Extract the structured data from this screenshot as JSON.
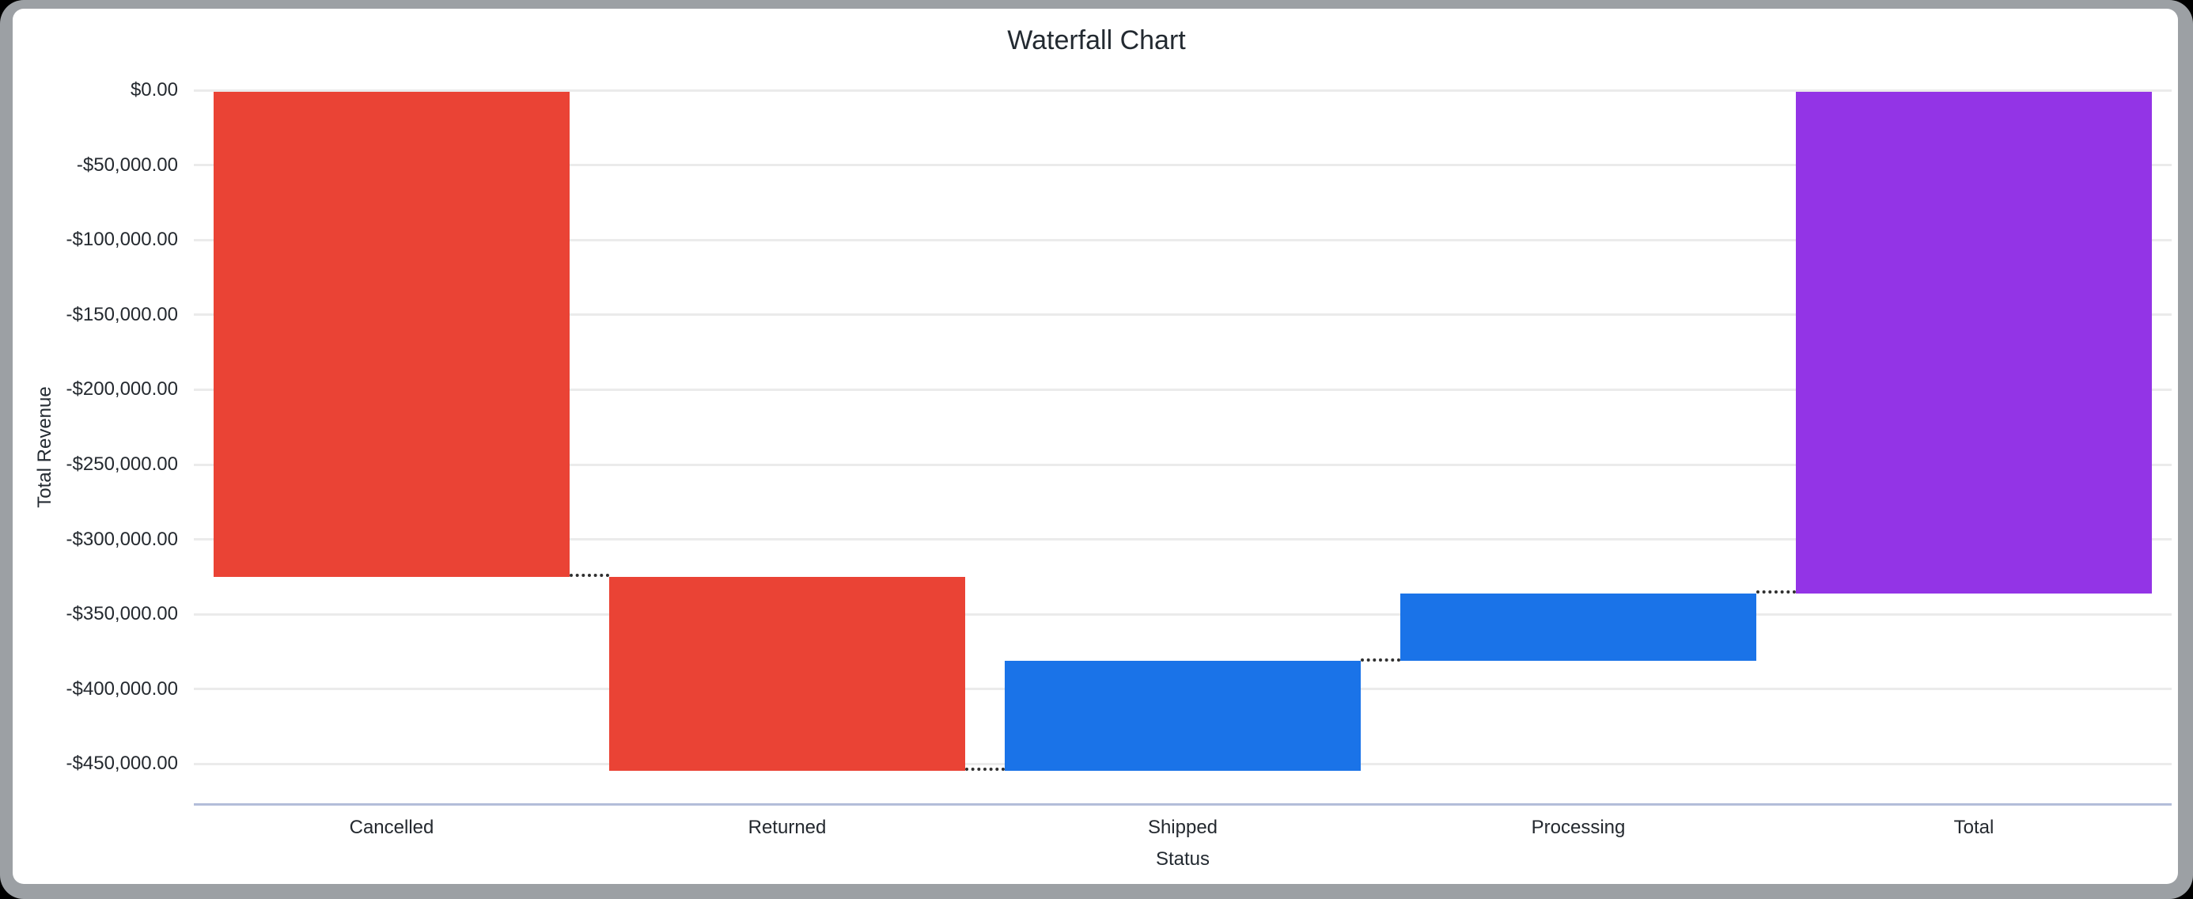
{
  "window": {
    "background": "#000000",
    "frame_color": "#9ca0a4",
    "card_color": "#ffffff"
  },
  "ui_colors": {
    "grid_line": "#ebebeb",
    "axis_line": "#b3bdd9",
    "text": "#24292f",
    "connector": "#303030"
  },
  "chart_data": {
    "type": "bar",
    "variant": "waterfall",
    "title": "Waterfall Chart",
    "xlabel": "Status",
    "ylabel": "Total Revenue",
    "legend": "none",
    "grid": true,
    "categories": [
      "Cancelled",
      "Returned",
      "Shipped",
      "Processing",
      "Total"
    ],
    "series": [
      {
        "name": "Total Revenue",
        "deltas": [
          -324200,
          -129300,
          73200,
          45200,
          -335100
        ],
        "cumulative": [
          -324200,
          -453500,
          -380300,
          -335100,
          -335100
        ]
      }
    ],
    "bars": [
      {
        "category": "Cancelled",
        "start": 0,
        "end": -324200,
        "role": "decrease"
      },
      {
        "category": "Returned",
        "start": -324200,
        "end": -453500,
        "role": "decrease"
      },
      {
        "category": "Shipped",
        "start": -453500,
        "end": -380300,
        "role": "increase"
      },
      {
        "category": "Processing",
        "start": -380300,
        "end": -335100,
        "role": "increase"
      },
      {
        "category": "Total",
        "start": 0,
        "end": -335100,
        "role": "total"
      }
    ],
    "colors": {
      "decrease": "#ea4335",
      "increase": "#1a73e8",
      "total": "#9334e6"
    },
    "connector_style": "dotted",
    "ylim": [
      -476000,
      0
    ],
    "yticks": {
      "values": [
        0,
        -50000,
        -100000,
        -150000,
        -200000,
        -250000,
        -300000,
        -350000,
        -400000,
        -450000
      ],
      "labels": [
        "$0.00",
        "-$50,000.00",
        "-$100,000.00",
        "-$150,000.00",
        "-$200,000.00",
        "-$250,000.00",
        "-$300,000.00",
        "-$350,000.00",
        "-$400,000.00",
        "-$450,000.00"
      ]
    }
  }
}
